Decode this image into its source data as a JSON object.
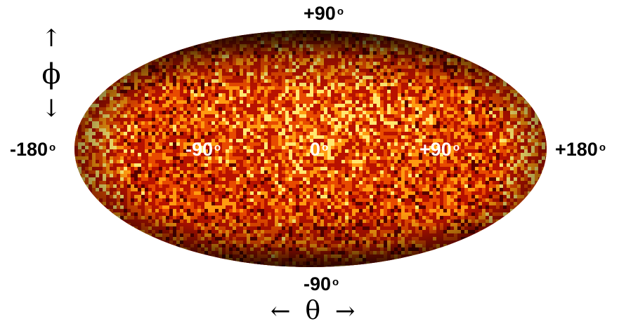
{
  "map": {
    "projection": "Mollweide all-sky",
    "colormap": "hot",
    "colors": [
      "#000000",
      "#5a0000",
      "#b81200",
      "#e84a00",
      "#ff9a10",
      "#ffe870"
    ]
  },
  "labels": {
    "top": "+90",
    "bottom": "-90",
    "left": "-180",
    "right": "+180",
    "inner_left": "-90",
    "inner_center": "0",
    "inner_right": "+90",
    "degree_symbol": "o"
  },
  "axes": {
    "phi": {
      "symbol": "ϕ",
      "arrow_up": "↑",
      "arrow_down": "↓"
    },
    "theta": {
      "symbol": "θ",
      "arrow_left": "←",
      "arrow_right": "→"
    }
  }
}
